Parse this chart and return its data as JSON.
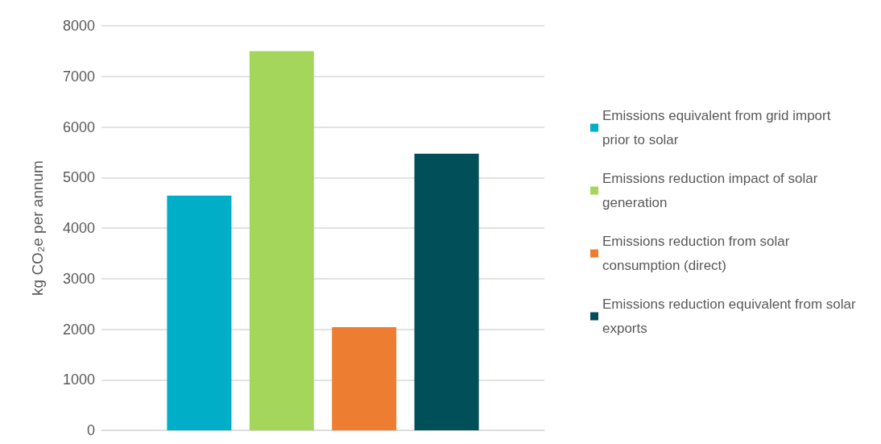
{
  "chart_data": {
    "type": "bar",
    "ylabel": "kg CO₂e per annum",
    "categories": [
      null
    ],
    "series": [
      {
        "name": "Emissions equivalent from grid import prior to solar",
        "color": "#00aec7",
        "values": [
          4640
        ]
      },
      {
        "name": "Emissions reduction impact of solar generation",
        "color": "#a5d65c",
        "values": [
          7500
        ]
      },
      {
        "name": "Emissions reduction from solar consumption (direct)",
        "color": "#ed7d31",
        "values": [
          2040
        ]
      },
      {
        "name": "Emissions reduction equivalent from solar exports",
        "color": "#004f59",
        "values": [
          5470
        ]
      }
    ],
    "ylim": [
      0,
      8000
    ],
    "yticks": [
      0,
      1000,
      2000,
      3000,
      4000,
      5000,
      6000,
      7000,
      8000
    ],
    "grid": "y",
    "legend": "right"
  }
}
